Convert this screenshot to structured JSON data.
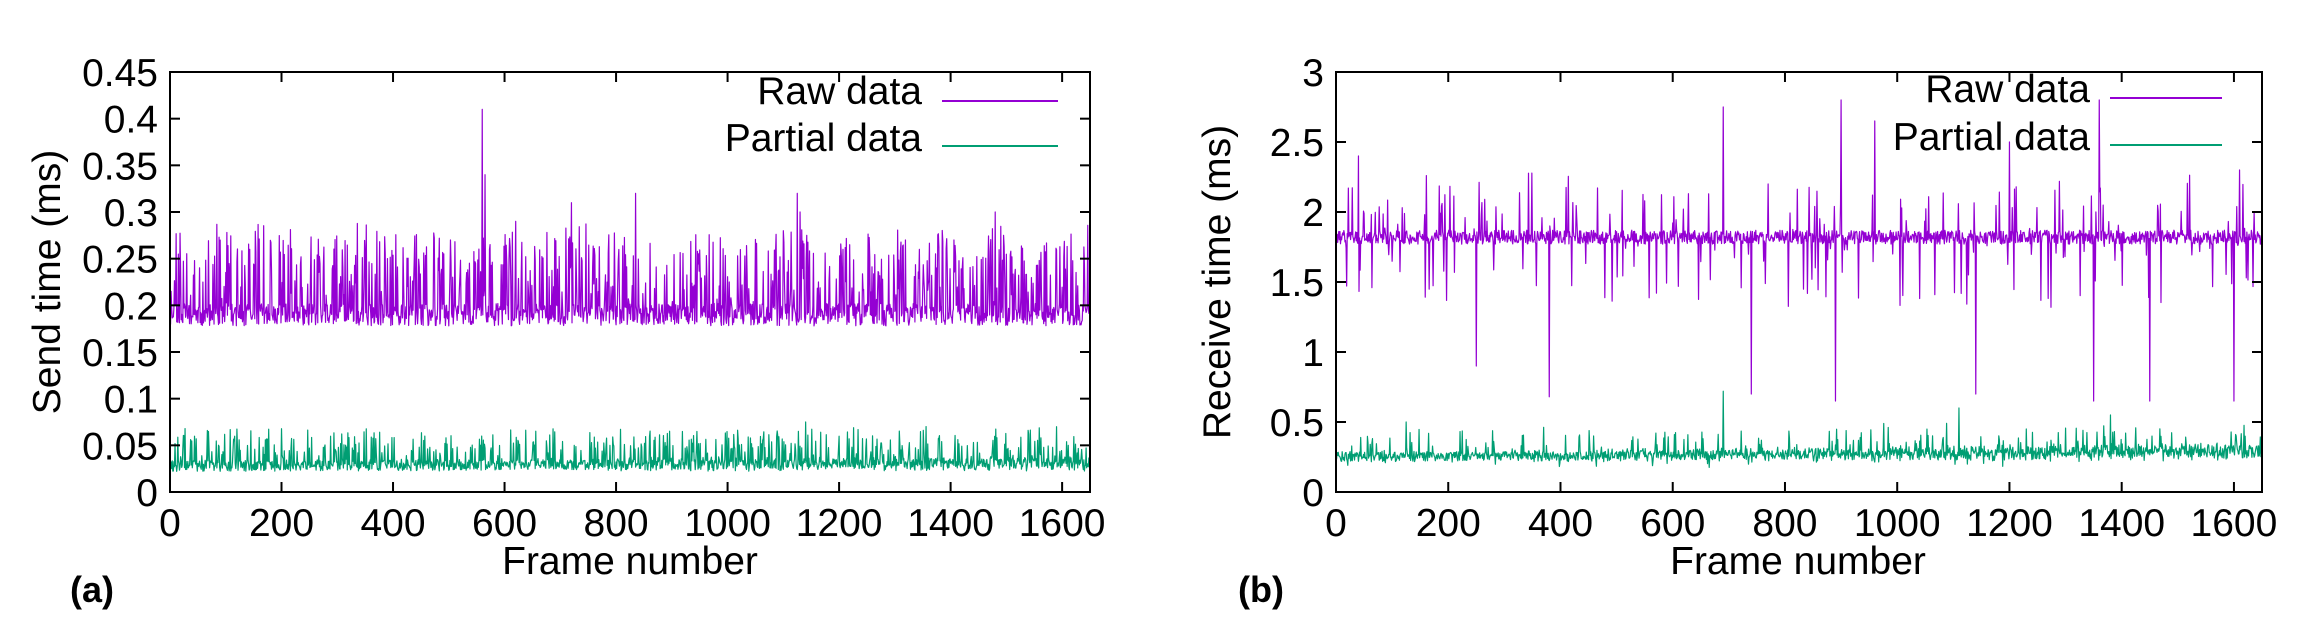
{
  "colors": {
    "raw": "#9400d3",
    "partial": "#009e73",
    "axis": "#000000"
  },
  "chart_data": [
    {
      "type": "line",
      "panel_label": "(a)",
      "xlabel": "Frame number",
      "ylabel": "Send time (ms)",
      "xlim": [
        0,
        1650
      ],
      "ylim": [
        0,
        0.45
      ],
      "xticks": [
        "0",
        "200",
        "400",
        "600",
        "800",
        "1000",
        "1200",
        "1400",
        "1600"
      ],
      "xtick_values": [
        0,
        200,
        400,
        600,
        800,
        1000,
        1200,
        1400,
        1600
      ],
      "yticks": [
        "0",
        "0.05",
        "0.1",
        "0.15",
        "0.2",
        "0.25",
        "0.3",
        "0.35",
        "0.4",
        "0.45"
      ],
      "ytick_values": [
        0,
        0.05,
        0.1,
        0.15,
        0.2,
        0.25,
        0.3,
        0.35,
        0.4,
        0.45
      ],
      "legend_position": "top-right",
      "series": [
        {
          "name": "Raw data",
          "color": "#9400d3",
          "generator": {
            "seed": 11,
            "base": 0.19,
            "noise": 0.012,
            "spike_prob": 0.3,
            "spike_min": 0.02,
            "spike_max": 0.09,
            "drift": 0.0,
            "events": [
              [
                0,
                0.33
              ],
              [
                560,
                0.41
              ],
              [
                565,
                0.34
              ],
              [
                620,
                0.29
              ],
              [
                720,
                0.31
              ],
              [
                835,
                0.32
              ],
              [
                1125,
                0.32
              ],
              [
                1130,
                0.3
              ],
              [
                1480,
                0.3
              ]
            ]
          }
        },
        {
          "name": "Partial data",
          "color": "#009e73",
          "generator": {
            "seed": 29,
            "base": 0.028,
            "noise": 0.006,
            "spike_prob": 0.22,
            "spike_min": 0.01,
            "spike_max": 0.035,
            "drift": 0.006,
            "events": [
              [
                1140,
                0.075
              ],
              [
                1590,
                0.07
              ]
            ]
          }
        }
      ]
    },
    {
      "type": "line",
      "panel_label": "(b)",
      "xlabel": "Frame number",
      "ylabel": "Receive time (ms)",
      "xlim": [
        0,
        1650
      ],
      "ylim": [
        0,
        3
      ],
      "xticks": [
        "0",
        "200",
        "400",
        "600",
        "800",
        "1000",
        "1200",
        "1400",
        "1600"
      ],
      "xtick_values": [
        0,
        200,
        400,
        600,
        800,
        1000,
        1200,
        1400,
        1600
      ],
      "yticks": [
        "0",
        "0.5",
        "1",
        "1.5",
        "2",
        "2.5",
        "3"
      ],
      "ytick_values": [
        0,
        0.5,
        1,
        1.5,
        2,
        2.5,
        3
      ],
      "legend_position": "top-right",
      "series": [
        {
          "name": "Raw data",
          "color": "#9400d3",
          "generator": {
            "seed": 47,
            "base": 1.82,
            "noise": 0.05,
            "spike_prob": 0.12,
            "spike_min": -0.5,
            "spike_max": 0.45,
            "drift": 0.0,
            "events": [
              [
                40,
                2.4
              ],
              [
                250,
                0.9
              ],
              [
                380,
                0.68
              ],
              [
                690,
                2.75
              ],
              [
                740,
                0.7
              ],
              [
                770,
                2.2
              ],
              [
                890,
                0.65
              ],
              [
                900,
                2.8
              ],
              [
                960,
                2.65
              ],
              [
                1140,
                0.7
              ],
              [
                1200,
                2.5
              ],
              [
                1350,
                0.65
              ],
              [
                1360,
                2.8
              ],
              [
                1450,
                0.65
              ],
              [
                1600,
                0.65
              ],
              [
                1610,
                2.3
              ]
            ]
          }
        },
        {
          "name": "Partial data",
          "color": "#009e73",
          "generator": {
            "seed": 71,
            "base": 0.25,
            "noise": 0.035,
            "spike_prob": 0.15,
            "spike_min": -0.06,
            "spike_max": 0.18,
            "drift": 0.08,
            "events": [
              [
                125,
                0.5
              ],
              [
                690,
                0.72
              ],
              [
                1110,
                0.6
              ],
              [
                1380,
                0.55
              ]
            ]
          }
        }
      ]
    }
  ]
}
